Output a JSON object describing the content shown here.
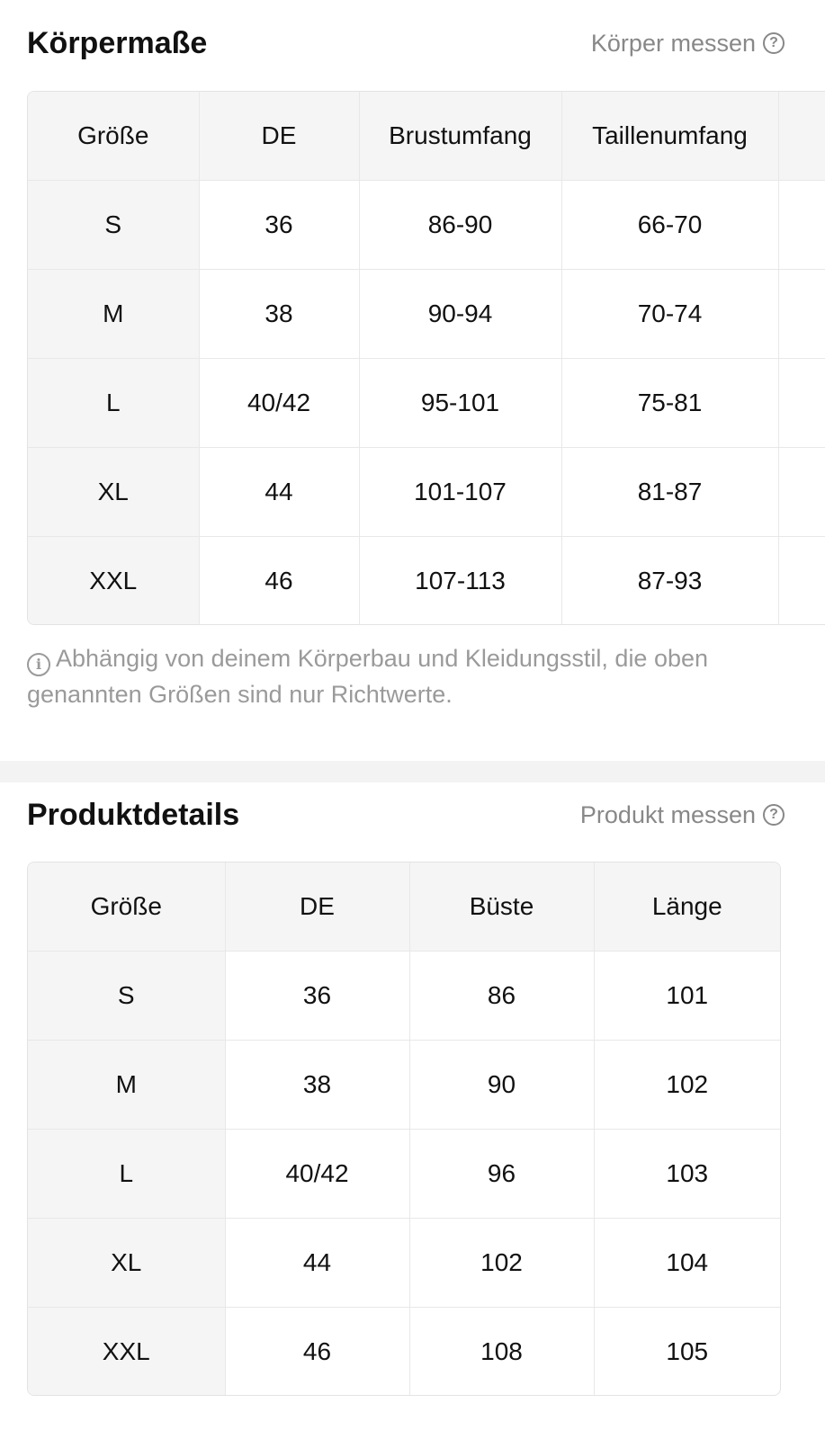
{
  "body_measurements": {
    "title": "Körpermaße",
    "link_label": "Körper messen",
    "link_icon": "question-circle-icon",
    "columns": [
      "Größe",
      "DE",
      "Brustumfang",
      "Taillenumfang"
    ],
    "rows": [
      [
        "S",
        "36",
        "86-90",
        "66-70"
      ],
      [
        "M",
        "38",
        "90-94",
        "70-74"
      ],
      [
        "L",
        "40/42",
        "95-101",
        "75-81"
      ],
      [
        "XL",
        "44",
        "101-107",
        "81-87"
      ],
      [
        "XXL",
        "46",
        "107-113",
        "87-93"
      ]
    ],
    "note_icon": "info-icon",
    "note": "Abhängig von deinem Körperbau und Kleidungsstil, die oben genannten Größen sind nur Richtwerte."
  },
  "product_details": {
    "title": "Produktdetails",
    "link_label": "Produkt messen",
    "link_icon": "question-circle-icon",
    "columns": [
      "Größe",
      "DE",
      "Büste",
      "Länge"
    ],
    "rows": [
      [
        "S",
        "36",
        "86",
        "101"
      ],
      [
        "M",
        "38",
        "90",
        "102"
      ],
      [
        "L",
        "40/42",
        "96",
        "103"
      ],
      [
        "XL",
        "44",
        "102",
        "104"
      ],
      [
        "XXL",
        "46",
        "108",
        "105"
      ]
    ]
  },
  "colors": {
    "header_bg": "#f5f5f5",
    "divider": "#f3f3f3",
    "muted_text": "#888888"
  }
}
